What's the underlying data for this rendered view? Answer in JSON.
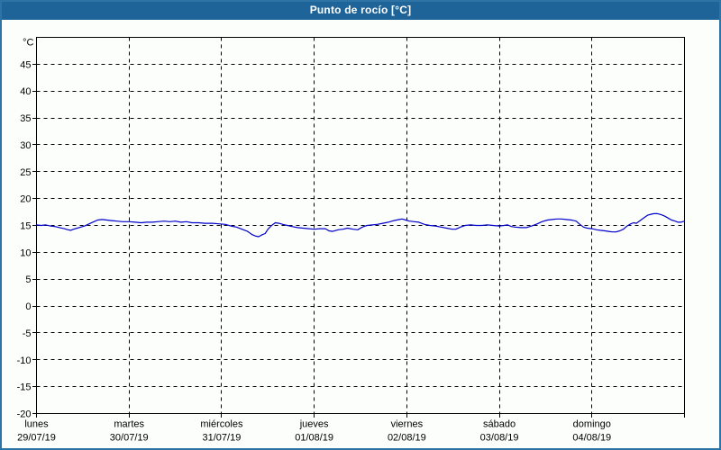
{
  "window": {
    "title": "Punto de rocío [°C]",
    "title_bar_color": "#1f6498",
    "border_color": "#2d73a3",
    "background_color": "#fcfefb"
  },
  "chart_data": {
    "type": "line",
    "title": "Punto de rocío [°C]",
    "legend": "none",
    "grid": {
      "style": "dashed",
      "horizontal": true,
      "vertical": true,
      "color": "#000000"
    },
    "y_axis": {
      "unit": "°C",
      "min": -20,
      "max": 50,
      "tick_step": 5,
      "labeled_ticks": [
        45,
        40,
        35,
        30,
        25,
        20,
        15,
        10,
        5,
        0,
        -5,
        -10,
        -15,
        -20
      ]
    },
    "x_axis": {
      "span_days": 7,
      "days": [
        {
          "name": "lunes",
          "date": "29/07/19"
        },
        {
          "name": "martes",
          "date": "30/07/19"
        },
        {
          "name": "miércoles",
          "date": "31/07/19"
        },
        {
          "name": "jueves",
          "date": "01/08/19"
        },
        {
          "name": "viernes",
          "date": "02/08/19"
        },
        {
          "name": "sábado",
          "date": "03/08/19"
        },
        {
          "name": "domingo",
          "date": "04/08/19"
        }
      ]
    },
    "series": [
      {
        "name": "Punto de rocío",
        "unit": "°C",
        "color": "#0000cc",
        "points_day_value": [
          [
            0.0,
            15.1
          ],
          [
            0.05,
            15.0
          ],
          [
            0.1,
            15.1
          ],
          [
            0.15,
            14.9
          ],
          [
            0.2,
            14.8
          ],
          [
            0.25,
            14.6
          ],
          [
            0.3,
            14.4
          ],
          [
            0.34,
            14.2
          ],
          [
            0.37,
            14.1
          ],
          [
            0.4,
            14.3
          ],
          [
            0.44,
            14.5
          ],
          [
            0.48,
            14.7
          ],
          [
            0.52,
            14.9
          ],
          [
            0.57,
            15.3
          ],
          [
            0.62,
            15.7
          ],
          [
            0.66,
            16.0
          ],
          [
            0.71,
            16.1
          ],
          [
            0.76,
            16.0
          ],
          [
            0.81,
            15.9
          ],
          [
            0.87,
            15.8
          ],
          [
            0.93,
            15.7
          ],
          [
            1.0,
            15.7
          ],
          [
            1.07,
            15.6
          ],
          [
            1.13,
            15.5
          ],
          [
            1.19,
            15.6
          ],
          [
            1.25,
            15.6
          ],
          [
            1.31,
            15.7
          ],
          [
            1.38,
            15.8
          ],
          [
            1.44,
            15.7
          ],
          [
            1.5,
            15.8
          ],
          [
            1.56,
            15.6
          ],
          [
            1.62,
            15.7
          ],
          [
            1.68,
            15.5
          ],
          [
            1.75,
            15.5
          ],
          [
            1.82,
            15.4
          ],
          [
            1.9,
            15.4
          ],
          [
            1.97,
            15.3
          ],
          [
            2.04,
            15.2
          ],
          [
            2.1,
            14.9
          ],
          [
            2.16,
            14.7
          ],
          [
            2.22,
            14.3
          ],
          [
            2.28,
            13.9
          ],
          [
            2.33,
            13.3
          ],
          [
            2.37,
            13.0
          ],
          [
            2.4,
            12.9
          ],
          [
            2.44,
            13.3
          ],
          [
            2.47,
            13.5
          ],
          [
            2.5,
            14.3
          ],
          [
            2.54,
            15.0
          ],
          [
            2.58,
            15.5
          ],
          [
            2.62,
            15.4
          ],
          [
            2.66,
            15.2
          ],
          [
            2.71,
            15.0
          ],
          [
            2.76,
            14.8
          ],
          [
            2.82,
            14.6
          ],
          [
            2.88,
            14.5
          ],
          [
            2.94,
            14.4
          ],
          [
            3.0,
            14.3
          ],
          [
            3.06,
            14.4
          ],
          [
            3.12,
            14.4
          ],
          [
            3.16,
            14.0
          ],
          [
            3.2,
            13.9
          ],
          [
            3.26,
            14.2
          ],
          [
            3.31,
            14.3
          ],
          [
            3.36,
            14.5
          ],
          [
            3.42,
            14.3
          ],
          [
            3.47,
            14.2
          ],
          [
            3.52,
            14.7
          ],
          [
            3.57,
            15.0
          ],
          [
            3.63,
            15.1
          ],
          [
            3.68,
            15.2
          ],
          [
            3.74,
            15.4
          ],
          [
            3.8,
            15.6
          ],
          [
            3.86,
            15.9
          ],
          [
            3.92,
            16.1
          ],
          [
            3.95,
            16.2
          ],
          [
            3.99,
            16.0
          ],
          [
            4.03,
            15.8
          ],
          [
            4.08,
            15.7
          ],
          [
            4.13,
            15.6
          ],
          [
            4.19,
            15.2
          ],
          [
            4.25,
            15.0
          ],
          [
            4.31,
            14.9
          ],
          [
            4.37,
            14.7
          ],
          [
            4.43,
            14.5
          ],
          [
            4.49,
            14.3
          ],
          [
            4.53,
            14.3
          ],
          [
            4.58,
            14.7
          ],
          [
            4.63,
            15.0
          ],
          [
            4.69,
            15.1
          ],
          [
            4.75,
            15.0
          ],
          [
            4.81,
            15.0
          ],
          [
            4.87,
            15.1
          ],
          [
            4.93,
            15.0
          ],
          [
            5.0,
            14.9
          ],
          [
            5.05,
            15.0
          ],
          [
            5.09,
            15.1
          ],
          [
            5.13,
            14.8
          ],
          [
            5.17,
            14.7
          ],
          [
            5.23,
            14.6
          ],
          [
            5.29,
            14.6
          ],
          [
            5.35,
            14.9
          ],
          [
            5.41,
            15.3
          ],
          [
            5.46,
            15.7
          ],
          [
            5.52,
            16.0
          ],
          [
            5.57,
            16.1
          ],
          [
            5.62,
            16.2
          ],
          [
            5.67,
            16.2
          ],
          [
            5.72,
            16.1
          ],
          [
            5.78,
            16.0
          ],
          [
            5.83,
            15.8
          ],
          [
            5.87,
            15.2
          ],
          [
            5.91,
            14.7
          ],
          [
            5.95,
            14.5
          ],
          [
            6.0,
            14.4
          ],
          [
            6.05,
            14.2
          ],
          [
            6.09,
            14.1
          ],
          [
            6.14,
            14.0
          ],
          [
            6.18,
            13.9
          ],
          [
            6.22,
            13.8
          ],
          [
            6.26,
            13.8
          ],
          [
            6.3,
            14.0
          ],
          [
            6.34,
            14.3
          ],
          [
            6.38,
            14.9
          ],
          [
            6.42,
            15.3
          ],
          [
            6.45,
            15.5
          ],
          [
            6.48,
            15.4
          ],
          [
            6.52,
            15.9
          ],
          [
            6.56,
            16.4
          ],
          [
            6.6,
            16.9
          ],
          [
            6.64,
            17.1
          ],
          [
            6.67,
            17.2
          ],
          [
            6.71,
            17.2
          ],
          [
            6.75,
            17.0
          ],
          [
            6.79,
            16.7
          ],
          [
            6.83,
            16.3
          ],
          [
            6.86,
            16.0
          ],
          [
            6.9,
            15.8
          ],
          [
            6.93,
            15.6
          ],
          [
            6.96,
            15.6
          ],
          [
            7.0,
            15.8
          ]
        ]
      }
    ]
  }
}
